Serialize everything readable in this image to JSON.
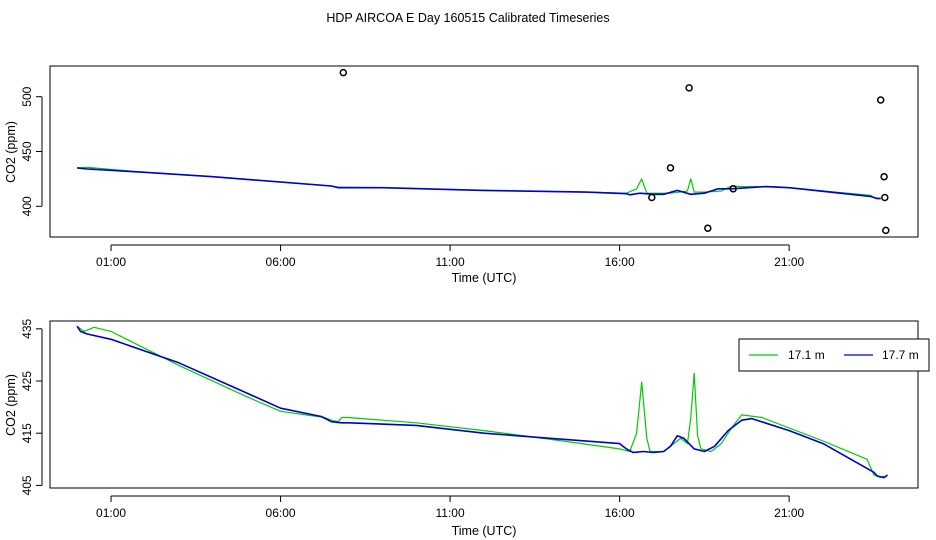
{
  "chart_data": [
    {
      "type": "line",
      "title": "HDP AIRCOA E  Day 160515  Calibrated Timeseries",
      "xlabel": "Time (UTC)",
      "ylabel": "CO2 (ppm)",
      "xlim": [
        -0.8,
        24.8
      ],
      "ylim": [
        372,
        528
      ],
      "xticks": [
        1,
        6,
        11,
        16,
        21
      ],
      "xtick_labels": [
        "01:00",
        "06:00",
        "11:00",
        "16:00",
        "21:00"
      ],
      "yticks": [
        400,
        450,
        500
      ],
      "ytick_labels": [
        "400",
        "450",
        "500"
      ],
      "series": [
        {
          "name": "17.1 m",
          "color": "#00cc00",
          "points": [
            [
              0,
              435
            ],
            [
              0.3,
              435.5
            ],
            [
              2,
              431
            ],
            [
              4,
              427
            ],
            [
              7.5,
              418.5
            ],
            [
              7.7,
              417.5
            ],
            [
              9,
              417
            ],
            [
              12,
              414.5
            ],
            [
              15,
              413
            ],
            [
              16.2,
              412
            ],
            [
              16.5,
              416
            ],
            [
              16.65,
              425
            ],
            [
              16.8,
              412
            ],
            [
              17.5,
              412
            ],
            [
              18.0,
              414
            ],
            [
              18.1,
              425
            ],
            [
              18.2,
              413
            ],
            [
              18.5,
              413
            ],
            [
              19.0,
              414
            ],
            [
              19.3,
              418.5
            ],
            [
              19.6,
              418
            ],
            [
              20.5,
              418
            ],
            [
              21,
              417
            ],
            [
              23.4,
              410
            ],
            [
              23.5,
              408
            ],
            [
              23.7,
              407
            ]
          ]
        },
        {
          "name": "17.7 m",
          "color": "#0000cc",
          "points": [
            [
              0,
              435
            ],
            [
              0.3,
              434
            ],
            [
              2,
              431
            ],
            [
              4,
              427
            ],
            [
              7.5,
              418.5
            ],
            [
              7.7,
              417
            ],
            [
              9,
              417
            ],
            [
              12,
              414.5
            ],
            [
              15,
              413
            ],
            [
              16.2,
              411.5
            ],
            [
              16.3,
              410.5
            ],
            [
              16.6,
              412
            ],
            [
              17,
              411
            ],
            [
              17.3,
              411
            ],
            [
              17.7,
              414.5
            ],
            [
              18.1,
              411
            ],
            [
              18.5,
              412
            ],
            [
              18.9,
              416
            ],
            [
              19.3,
              416
            ],
            [
              19.8,
              417
            ],
            [
              20.3,
              418
            ],
            [
              21,
              417
            ],
            [
              23.4,
              409
            ],
            [
              23.6,
              407
            ],
            [
              23.7,
              407
            ]
          ]
        }
      ],
      "outliers": [
        [
          7.85,
          522
        ],
        [
          16.95,
          408
        ],
        [
          17.5,
          435
        ],
        [
          18.05,
          508
        ],
        [
          18.6,
          380
        ],
        [
          19.35,
          416
        ],
        [
          23.7,
          497
        ],
        [
          23.8,
          427
        ],
        [
          23.82,
          408
        ],
        [
          23.85,
          378
        ]
      ]
    },
    {
      "type": "line",
      "title": "",
      "xlabel": "Time (UTC)",
      "ylabel": "CO2 (ppm)",
      "xlim": [
        -0.8,
        24.8
      ],
      "ylim": [
        404.5,
        436.5
      ],
      "xticks": [
        1,
        6,
        11,
        16,
        21
      ],
      "xtick_labels": [
        "01:00",
        "06:00",
        "11:00",
        "16:00",
        "21:00"
      ],
      "yticks": [
        405,
        415,
        425,
        435
      ],
      "ytick_labels": [
        "405",
        "415",
        "425",
        "435"
      ],
      "legend": {
        "position": "top-right",
        "entries": [
          "17.1 m",
          "17.7 m"
        ]
      },
      "series": [
        {
          "name": "17.1 m",
          "color": "#00cc00",
          "points": [
            [
              0,
              435.5
            ],
            [
              0.2,
              434.5
            ],
            [
              0.5,
              435.3
            ],
            [
              1,
              434.5
            ],
            [
              3,
              428
            ],
            [
              5,
              422
            ],
            [
              6,
              419.2
            ],
            [
              7.3,
              418
            ],
            [
              7.5,
              417.5
            ],
            [
              7.7,
              417.2
            ],
            [
              7.8,
              418
            ],
            [
              8,
              418
            ],
            [
              10,
              417
            ],
            [
              12,
              415.5
            ],
            [
              14,
              413.8
            ],
            [
              16,
              412
            ],
            [
              16.3,
              411.5
            ],
            [
              16.5,
              415
            ],
            [
              16.65,
              424.8
            ],
            [
              16.8,
              414
            ],
            [
              16.9,
              411.5
            ],
            [
              17.3,
              411.5
            ],
            [
              17.6,
              413
            ],
            [
              17.8,
              414
            ],
            [
              18,
              413
            ],
            [
              18.1,
              418
            ],
            [
              18.2,
              426.5
            ],
            [
              18.3,
              414.5
            ],
            [
              18.4,
              412
            ],
            [
              18.7,
              411.5
            ],
            [
              19,
              413
            ],
            [
              19.3,
              416
            ],
            [
              19.6,
              418.5
            ],
            [
              20.2,
              418
            ],
            [
              21,
              416
            ],
            [
              22,
              413.5
            ],
            [
              23.3,
              410
            ],
            [
              23.5,
              407
            ],
            [
              23.7,
              406.5
            ],
            [
              23.8,
              406.8
            ]
          ]
        },
        {
          "name": "17.7 m",
          "color": "#0000cc",
          "points": [
            [
              0,
              435.5
            ],
            [
              0.1,
              434.5
            ],
            [
              0.3,
              434
            ],
            [
              1,
              433
            ],
            [
              3,
              428.5
            ],
            [
              5,
              422.7
            ],
            [
              6,
              419.8
            ],
            [
              7.2,
              418.2
            ],
            [
              7.5,
              417.2
            ],
            [
              7.8,
              417
            ],
            [
              8,
              417
            ],
            [
              10,
              416.5
            ],
            [
              12,
              415
            ],
            [
              14,
              414
            ],
            [
              16,
              413
            ],
            [
              16.2,
              412
            ],
            [
              16.4,
              411.3
            ],
            [
              16.7,
              411.5
            ],
            [
              17,
              411.3
            ],
            [
              17.3,
              411.5
            ],
            [
              17.5,
              412.5
            ],
            [
              17.7,
              414.5
            ],
            [
              17.9,
              414
            ],
            [
              18.2,
              412
            ],
            [
              18.5,
              411.5
            ],
            [
              18.8,
              412.5
            ],
            [
              19.2,
              415.5
            ],
            [
              19.6,
              417.5
            ],
            [
              19.9,
              417.8
            ],
            [
              21,
              415.5
            ],
            [
              22,
              413
            ],
            [
              23.5,
              407.5
            ],
            [
              23.6,
              406.8
            ],
            [
              23.8,
              406.5
            ],
            [
              23.9,
              407
            ]
          ]
        }
      ]
    }
  ]
}
